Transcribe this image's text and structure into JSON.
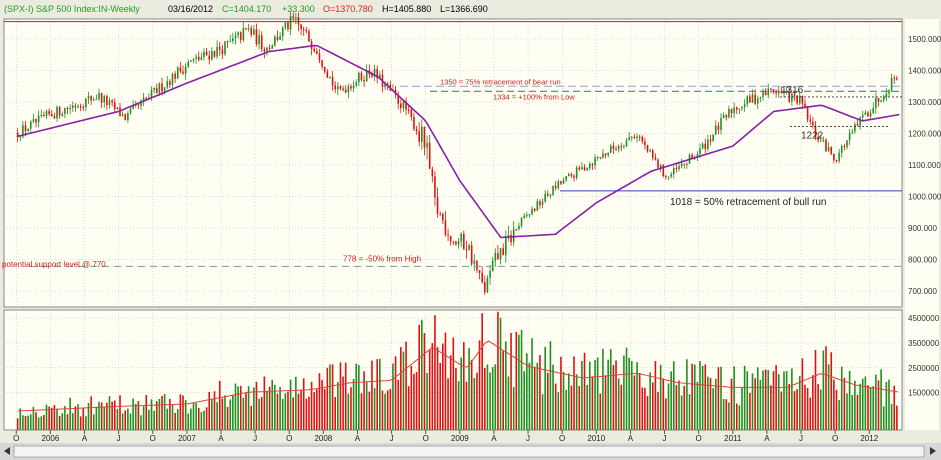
{
  "header": {
    "symbol": "(SPX-I) S&P 500 Index:IN-Weekly",
    "date": "03/16/2012",
    "close": "C=1404.170",
    "change": "+33.300",
    "open": "O=1370.780",
    "high": "H=1405.880",
    "low": "L=1366.690"
  },
  "colors": {
    "background": "#fffff4",
    "up": "#1f8f1f",
    "down": "#e01010",
    "moving_average": "#8a1fa8",
    "volume_avg": "#e04040",
    "volume_line": "#3a3ad0",
    "grid": "#b8b8c8",
    "level_blue_dash": "#8aa0e0",
    "level_green_dash": "#4a8a6a",
    "annotation_red": "#d02020"
  },
  "chart_data": [
    {
      "type": "candlestick",
      "title": "",
      "xlabel": "",
      "ylabel": "",
      "x_ticks": [
        "O",
        "2006",
        "A",
        "J",
        "O",
        "2007",
        "A",
        "J",
        "O",
        "2008",
        "A",
        "J",
        "O",
        "2009",
        "A",
        "J",
        "O",
        "2010",
        "A",
        "J",
        "O",
        "2011",
        "A",
        "J",
        "O",
        "2012"
      ],
      "y_ticks": [
        "1500.000",
        "1400.000",
        "1300.000",
        "1200.000",
        "1100.000",
        "1000.000",
        "900.000",
        "800.000",
        "700.000"
      ],
      "ylim": [
        660,
        1560
      ],
      "grid": true,
      "price_path": [
        [
          2005.75,
          1200
        ],
        [
          2006.0,
          1260
        ],
        [
          2006.35,
          1320
        ],
        [
          2006.55,
          1250
        ],
        [
          2007.0,
          1420
        ],
        [
          2007.3,
          1480
        ],
        [
          2007.45,
          1530
        ],
        [
          2007.58,
          1470
        ],
        [
          2007.78,
          1560
        ],
        [
          2007.95,
          1470
        ],
        [
          2008.1,
          1330
        ],
        [
          2008.35,
          1400
        ],
        [
          2008.6,
          1280
        ],
        [
          2008.75,
          1160
        ],
        [
          2008.82,
          970
        ],
        [
          2008.95,
          860
        ],
        [
          2009.05,
          850
        ],
        [
          2009.18,
          700
        ],
        [
          2009.25,
          790
        ],
        [
          2009.45,
          920
        ],
        [
          2009.7,
          1030
        ],
        [
          2010.0,
          1120
        ],
        [
          2010.3,
          1200
        ],
        [
          2010.38,
          1140
        ],
        [
          2010.52,
          1060
        ],
        [
          2010.75,
          1140
        ],
        [
          2011.0,
          1280
        ],
        [
          2011.3,
          1340
        ],
        [
          2011.5,
          1300
        ],
        [
          2011.6,
          1200
        ],
        [
          2011.75,
          1120
        ],
        [
          2011.95,
          1250
        ],
        [
          2012.05,
          1300
        ],
        [
          2012.22,
          1400
        ]
      ],
      "moving_average": [
        [
          2005.75,
          1190
        ],
        [
          2006.5,
          1270
        ],
        [
          2007.0,
          1360
        ],
        [
          2007.6,
          1460
        ],
        [
          2007.95,
          1480
        ],
        [
          2008.4,
          1380
        ],
        [
          2008.75,
          1240
        ],
        [
          2009.0,
          1050
        ],
        [
          2009.3,
          870
        ],
        [
          2009.7,
          880
        ],
        [
          2010.0,
          980
        ],
        [
          2010.4,
          1080
        ],
        [
          2010.7,
          1120
        ],
        [
          2011.0,
          1160
        ],
        [
          2011.3,
          1270
        ],
        [
          2011.65,
          1290
        ],
        [
          2011.95,
          1240
        ],
        [
          2012.22,
          1260
        ]
      ],
      "levels": [
        {
          "value": 1350,
          "label": "1350 = 75% retracement of bear run",
          "style": "blue-dash"
        },
        {
          "value": 1334,
          "label": "1334 = +100% from Low",
          "style": "green-dash"
        },
        {
          "value": 1316,
          "label": "1316",
          "style": "dotted"
        },
        {
          "value": 1222,
          "label": "1222",
          "style": "dotted"
        },
        {
          "value": 1018,
          "label": "1018 = 50% retracement of bull run",
          "style": "blue-solid"
        },
        {
          "value": 778,
          "label": "778 = -50% from High",
          "style": "green-dash"
        },
        {
          "value": 770,
          "label": "potential support level @ 770",
          "style": "none"
        },
        {
          "value": 1555,
          "label": "",
          "style": "red-solid"
        }
      ]
    },
    {
      "type": "bar",
      "title": "",
      "y_ticks": [
        "4500000",
        "3500000",
        "2500000",
        "1500000"
      ],
      "ylim": [
        0,
        5000000
      ],
      "volume_profile": [
        [
          2005.75,
          800000
        ],
        [
          2006.5,
          1000000
        ],
        [
          2007.0,
          1100000
        ],
        [
          2007.45,
          1600000
        ],
        [
          2007.9,
          1700000
        ],
        [
          2008.2,
          2000000
        ],
        [
          2008.5,
          2100000
        ],
        [
          2008.8,
          3500000
        ],
        [
          2009.05,
          2600000
        ],
        [
          2009.2,
          3800000
        ],
        [
          2009.5,
          2700000
        ],
        [
          2009.9,
          2200000
        ],
        [
          2010.3,
          2400000
        ],
        [
          2010.6,
          2000000
        ],
        [
          2011.0,
          1800000
        ],
        [
          2011.4,
          1800000
        ],
        [
          2011.65,
          2400000
        ],
        [
          2011.9,
          1900000
        ],
        [
          2012.22,
          1600000
        ]
      ]
    }
  ]
}
